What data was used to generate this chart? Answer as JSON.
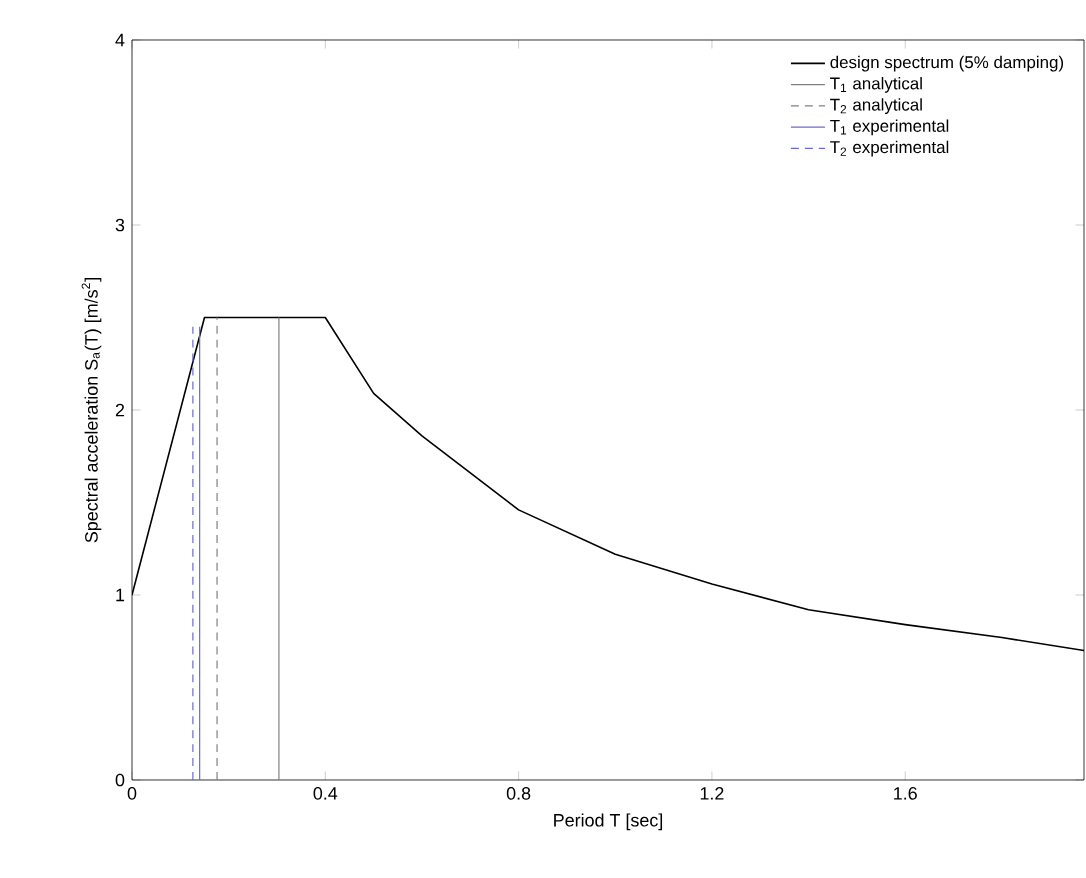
{
  "chart_data": {
    "type": "line",
    "xlabel": "Period T [sec]",
    "ylabel": "Spectral acceleration S$_{a}$(T) [m/s$^{2}$]",
    "xlim": [
      0,
      1.97
    ],
    "ylim": [
      0,
      4
    ],
    "xticks": [
      0,
      0.4,
      0.8,
      1.2,
      1.6
    ],
    "yticks": [
      0,
      1,
      2,
      3,
      4
    ],
    "legend": "top right",
    "grid": false,
    "series": [
      {
        "name": "design spectrum (5% damping)",
        "color": "#000000",
        "line_style": "solid",
        "x": [
          0,
          0.15,
          0.4,
          0.5,
          0.6,
          0.8,
          1.0,
          1.2,
          1.4,
          1.6,
          1.8,
          1.97
        ],
        "values": [
          1,
          2.5,
          2.5,
          2.09,
          1.86,
          1.46,
          1.22,
          1.06,
          0.92,
          0.84,
          0.77,
          0.7
        ]
      },
      {
        "name": "T$_{1}$ analytical",
        "color": "#808080",
        "line_style": "solid",
        "x": [
          0.304,
          0.304
        ],
        "values": [
          0,
          2.5
        ]
      },
      {
        "name": "T$_{2}$ analytical",
        "color": "#808080",
        "line_style": "dashed",
        "x": [
          0.176,
          0.176
        ],
        "values": [
          0,
          2.5
        ]
      },
      {
        "name": "T$_{1}$ experimental",
        "color": "#6a6ad0",
        "line_style": "solid",
        "x": [
          0.14,
          0.14
        ],
        "values": [
          0,
          2.45
        ]
      },
      {
        "name": "T$_{2}$ experimental",
        "color": "#6a6ad0",
        "line_style": "dashed",
        "x": [
          0.126,
          0.126
        ],
        "values": [
          0,
          2.45
        ]
      }
    ]
  }
}
